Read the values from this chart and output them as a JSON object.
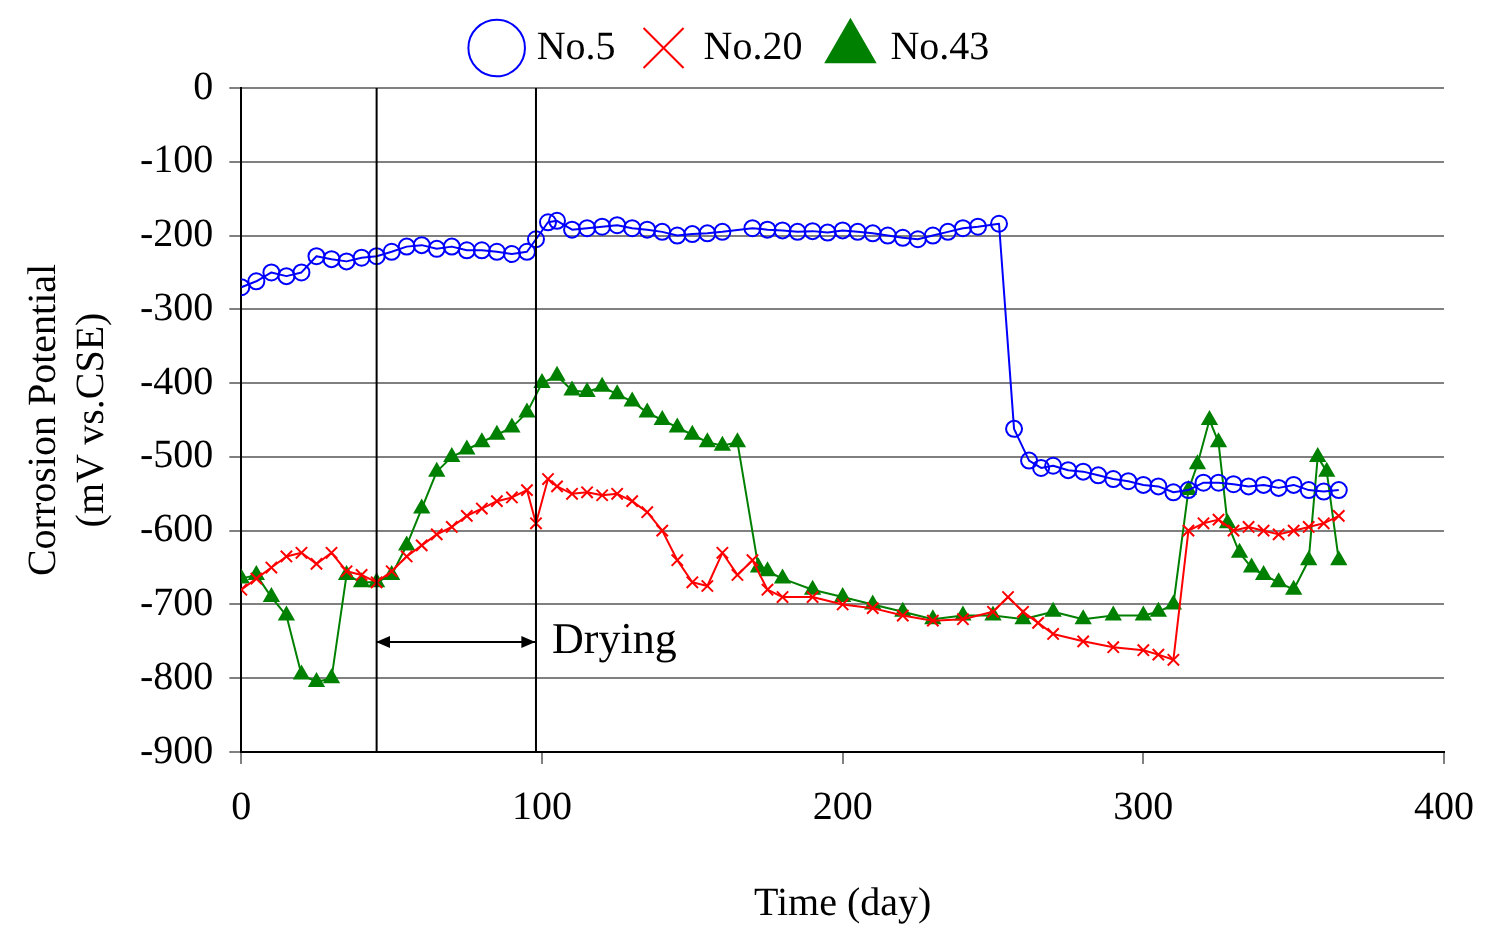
{
  "chart_data": {
    "type": "line",
    "xlabel": "Time (day)",
    "ylabel": "Corrosion Potential\n(mV vs.CSE)",
    "xlim": [
      0,
      400
    ],
    "xticks": [
      0,
      100,
      200,
      300,
      400
    ],
    "ylim": [
      -900,
      0
    ],
    "yticks": [
      0,
      -100,
      -200,
      -300,
      -400,
      -500,
      -600,
      -700,
      -800,
      -900
    ],
    "grid": "y",
    "legend": "top",
    "line_style": "solid",
    "ref_lines": [
      {
        "axis": "x",
        "value": 45,
        "color": "#000000"
      },
      {
        "axis": "x",
        "value": 98,
        "color": "#000000"
      }
    ],
    "annotations": [
      {
        "text": "Drying",
        "x": 98,
        "y": -750
      }
    ],
    "series": [
      {
        "name": "No.5",
        "color": "#0000ff",
        "marker": "circle",
        "x": [
          0,
          5,
          10,
          15,
          20,
          25,
          30,
          35,
          40,
          45,
          50,
          55,
          60,
          65,
          70,
          75,
          80,
          85,
          90,
          95,
          98,
          102,
          105,
          110,
          115,
          120,
          125,
          130,
          135,
          140,
          145,
          150,
          155,
          160,
          170,
          175,
          180,
          185,
          190,
          195,
          200,
          205,
          210,
          215,
          220,
          225,
          230,
          235,
          240,
          245,
          252,
          257,
          262,
          266,
          270,
          275,
          280,
          285,
          290,
          295,
          300,
          305,
          310,
          315,
          320,
          325,
          330,
          335,
          340,
          345,
          350,
          355,
          360,
          365
        ],
        "values": [
          -270,
          -262,
          -250,
          -255,
          -250,
          -228,
          -232,
          -235,
          -230,
          -228,
          -222,
          -215,
          -213,
          -218,
          -215,
          -220,
          -220,
          -222,
          -225,
          -222,
          -205,
          -182,
          -180,
          -192,
          -190,
          -188,
          -186,
          -190,
          -192,
          -195,
          -200,
          -198,
          -197,
          -195,
          -190,
          -192,
          -193,
          -195,
          -194,
          -196,
          -193,
          -195,
          -197,
          -200,
          -203,
          -205,
          -200,
          -195,
          -190,
          -188,
          -184,
          -462,
          -505,
          -515,
          -512,
          -518,
          -520,
          -525,
          -530,
          -533,
          -538,
          -540,
          -548,
          -545,
          -535,
          -535,
          -537,
          -540,
          -538,
          -542,
          -538,
          -545,
          -547,
          -545
        ]
      },
      {
        "name": "No.20",
        "color": "#ff0000",
        "marker": "cross",
        "x": [
          0,
          5,
          10,
          15,
          20,
          25,
          30,
          35,
          40,
          45,
          50,
          55,
          60,
          65,
          70,
          75,
          80,
          85,
          90,
          95,
          98,
          102,
          105,
          110,
          115,
          120,
          125,
          130,
          135,
          140,
          145,
          150,
          155,
          160,
          165,
          170,
          175,
          180,
          190,
          200,
          210,
          220,
          230,
          240,
          250,
          255,
          260,
          265,
          270,
          280,
          290,
          300,
          305,
          310,
          315,
          320,
          325,
          330,
          335,
          340,
          345,
          350,
          355,
          360,
          365
        ],
        "values": [
          -680,
          -665,
          -650,
          -635,
          -630,
          -645,
          -630,
          -655,
          -660,
          -670,
          -655,
          -635,
          -620,
          -605,
          -595,
          -580,
          -570,
          -560,
          -555,
          -545,
          -590,
          -530,
          -540,
          -550,
          -548,
          -552,
          -550,
          -560,
          -575,
          -600,
          -640,
          -670,
          -675,
          -630,
          -660,
          -640,
          -680,
          -690,
          -690,
          -700,
          -705,
          -715,
          -722,
          -720,
          -710,
          -690,
          -710,
          -725,
          -740,
          -750,
          -758,
          -762,
          -768,
          -775,
          -600,
          -590,
          -585,
          -600,
          -595,
          -600,
          -605,
          -600,
          -595,
          -590,
          -580
        ]
      },
      {
        "name": "No.43",
        "color": "#008000",
        "marker": "triangle",
        "x": [
          0,
          5,
          10,
          15,
          20,
          25,
          30,
          35,
          40,
          45,
          50,
          55,
          60,
          65,
          70,
          75,
          80,
          85,
          90,
          95,
          100,
          105,
          110,
          115,
          120,
          125,
          130,
          135,
          140,
          145,
          150,
          155,
          160,
          165,
          172,
          175,
          180,
          190,
          200,
          210,
          220,
          230,
          240,
          250,
          260,
          270,
          280,
          290,
          300,
          305,
          310,
          315,
          318,
          322,
          325,
          328,
          332,
          336,
          340,
          345,
          350,
          355,
          358,
          361,
          365
        ],
        "values": [
          -665,
          -660,
          -690,
          -715,
          -795,
          -805,
          -800,
          -660,
          -670,
          -670,
          -660,
          -620,
          -570,
          -520,
          -500,
          -490,
          -480,
          -470,
          -460,
          -440,
          -400,
          -390,
          -410,
          -412,
          -405,
          -415,
          -425,
          -440,
          -450,
          -460,
          -470,
          -480,
          -485,
          -480,
          -650,
          -655,
          -665,
          -680,
          -690,
          -700,
          -710,
          -720,
          -715,
          -715,
          -720,
          -710,
          -720,
          -715,
          -715,
          -710,
          -700,
          -545,
          -510,
          -450,
          -480,
          -590,
          -630,
          -650,
          -660,
          -670,
          -680,
          -640,
          -500,
          -520,
          -640
        ]
      }
    ]
  }
}
